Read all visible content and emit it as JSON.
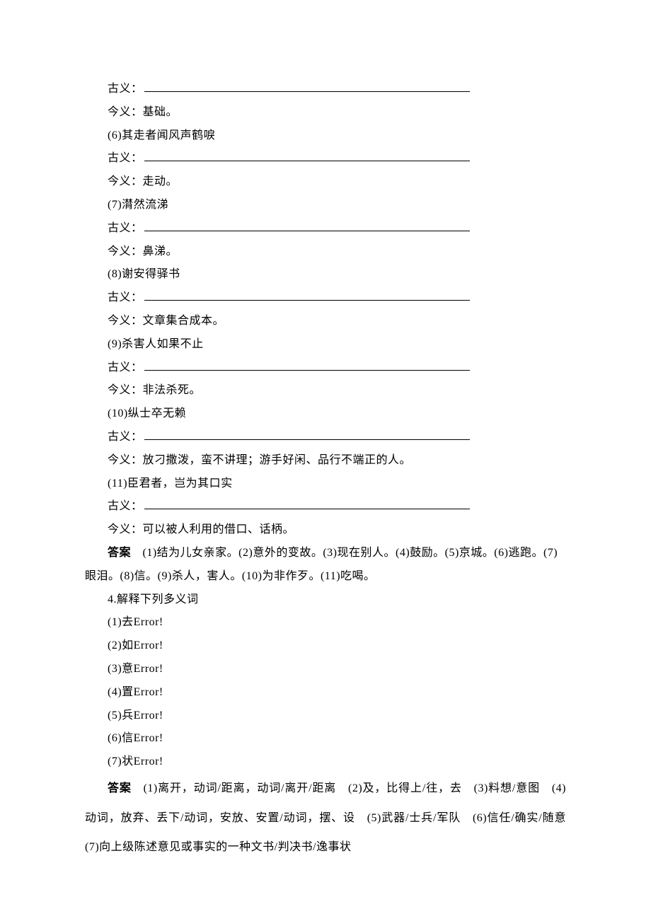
{
  "items": [
    {
      "prefix": "古义：",
      "underline_width": 460
    },
    {
      "text": "今义：基础。"
    },
    {
      "text": "(6)其走者闻风声鹤唳"
    },
    {
      "prefix": "古义：",
      "underline_width": 460
    },
    {
      "text": "今义：走动。"
    },
    {
      "text": "(7)潸然流涕"
    },
    {
      "prefix": "古义：",
      "underline_width": 460
    },
    {
      "text": "今义：鼻涕。"
    },
    {
      "text": "(8)谢安得驿书"
    },
    {
      "prefix": "古义：",
      "underline_width": 460
    },
    {
      "text": "今义：文章集合成本。"
    },
    {
      "text": "(9)杀害人如果不止"
    },
    {
      "prefix": "古义：",
      "underline_width": 460
    },
    {
      "text": "今义：非法杀死。"
    },
    {
      "text": "(10)纵士卒无赖"
    },
    {
      "prefix": "古义：",
      "underline_width": 460
    },
    {
      "text": "今义：放刁撒泼，蛮不讲理；游手好闲、品行不端正的人。"
    },
    {
      "text": "(11)臣君者，岂为其口实"
    },
    {
      "prefix": "古义：",
      "underline_width": 460
    },
    {
      "text": "今义：可以被人利用的借口、话柄。"
    }
  ],
  "answer1": {
    "label": "答案",
    "text": "　(1)结为儿女亲家。(2)意外的变故。(3)现在别人。(4)鼓励。(5)京城。(6)逃跑。(7)眼泪。(8)信。(9)杀人，害人。(10)为非作歹。(11)吃喝。"
  },
  "section4": {
    "title": "4.解释下列多义词",
    "list": [
      "(1)去Error!",
      "(2)如Error!",
      "(3)意Error!",
      "(4)置Error!",
      "(5)兵Error!",
      "(6)信Error!",
      "(7)状Error!"
    ]
  },
  "answer2": {
    "label": "答案",
    "text": "　(1)离开，动词/距离，动词/离开/距离　(2)及，比得上/往，去　(3)料想/意图　(4)动词，放弃、丢下/动词，安放、安置/动词，摆、设　(5)武器/士兵/军队　(6)信任/确实/随意　(7)向上级陈述意见或事实的一种文书/判决书/逸事状"
  }
}
